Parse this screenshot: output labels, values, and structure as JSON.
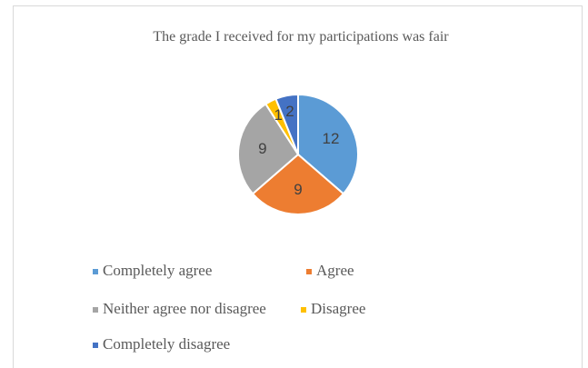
{
  "chart_data": {
    "type": "pie",
    "title": "The grade I received for my participations was fair",
    "categories": [
      "Completely agree",
      "Agree",
      "Neither agree nor disagree",
      "Disagree",
      "Completely disagree"
    ],
    "values": [
      12,
      9,
      9,
      1,
      2
    ],
    "colors": [
      "#5b9bd5",
      "#ed7d31",
      "#a5a5a5",
      "#ffc000",
      "#4472c4"
    ],
    "legend": "bottom"
  }
}
